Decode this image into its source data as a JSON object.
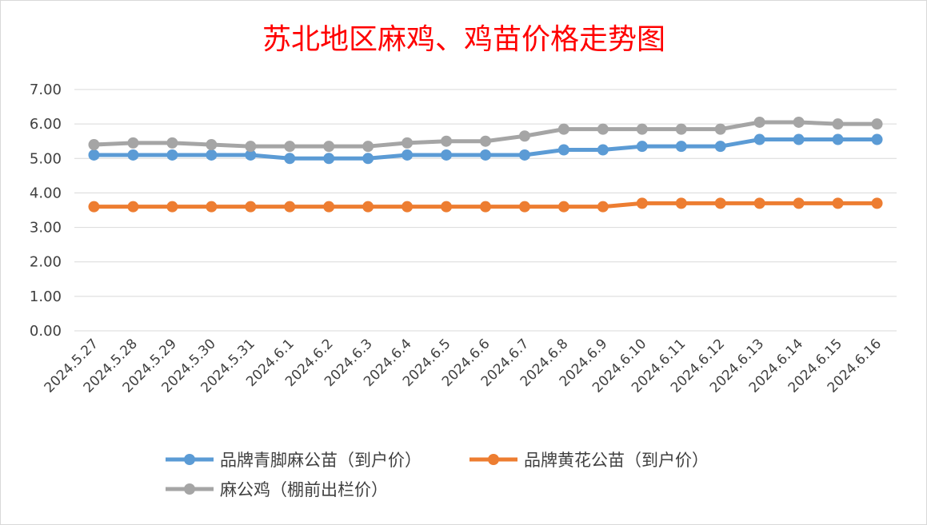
{
  "chart_data": {
    "type": "line",
    "title": "苏北地区麻鸡、鸡苗价格走势图",
    "x": [
      "2024.5.27",
      "2024.5.28",
      "2024.5.29",
      "2024.5.30",
      "2024.5.31",
      "2024.6.1",
      "2024.6.2",
      "2024.6.3",
      "2024.6.4",
      "2024.6.5",
      "2024.6.6",
      "2024.6.7",
      "2024.6.8",
      "2024.6.9",
      "2024.6.10",
      "2024.6.11",
      "2024.6.12",
      "2024.6.13",
      "2024.6.14",
      "2024.6.15",
      "2024.6.16"
    ],
    "y_ticks": [
      "0.00",
      "1.00",
      "2.00",
      "3.00",
      "4.00",
      "5.00",
      "6.00",
      "7.00"
    ],
    "ylim": [
      0,
      7
    ],
    "grid": true,
    "legend_position": "bottom",
    "series": [
      {
        "name": "品牌青脚麻公苗（到户价）",
        "color": "#5b9bd5",
        "values": [
          5.1,
          5.1,
          5.1,
          5.1,
          5.1,
          5.0,
          5.0,
          5.0,
          5.1,
          5.1,
          5.1,
          5.1,
          5.25,
          5.25,
          5.35,
          5.35,
          5.35,
          5.55,
          5.55,
          5.55,
          5.55
        ]
      },
      {
        "name": "品牌黄花公苗（到户价）",
        "color": "#ed7d31",
        "values": [
          3.6,
          3.6,
          3.6,
          3.6,
          3.6,
          3.6,
          3.6,
          3.6,
          3.6,
          3.6,
          3.6,
          3.6,
          3.6,
          3.6,
          3.7,
          3.7,
          3.7,
          3.7,
          3.7,
          3.7,
          3.7
        ]
      },
      {
        "name": "麻公鸡（棚前出栏价）",
        "color": "#a5a5a5",
        "values": [
          5.4,
          5.45,
          5.45,
          5.4,
          5.35,
          5.35,
          5.35,
          5.35,
          5.45,
          5.5,
          5.5,
          5.65,
          5.85,
          5.85,
          5.85,
          5.85,
          5.85,
          6.05,
          6.05,
          6.0,
          6.0
        ]
      }
    ]
  }
}
